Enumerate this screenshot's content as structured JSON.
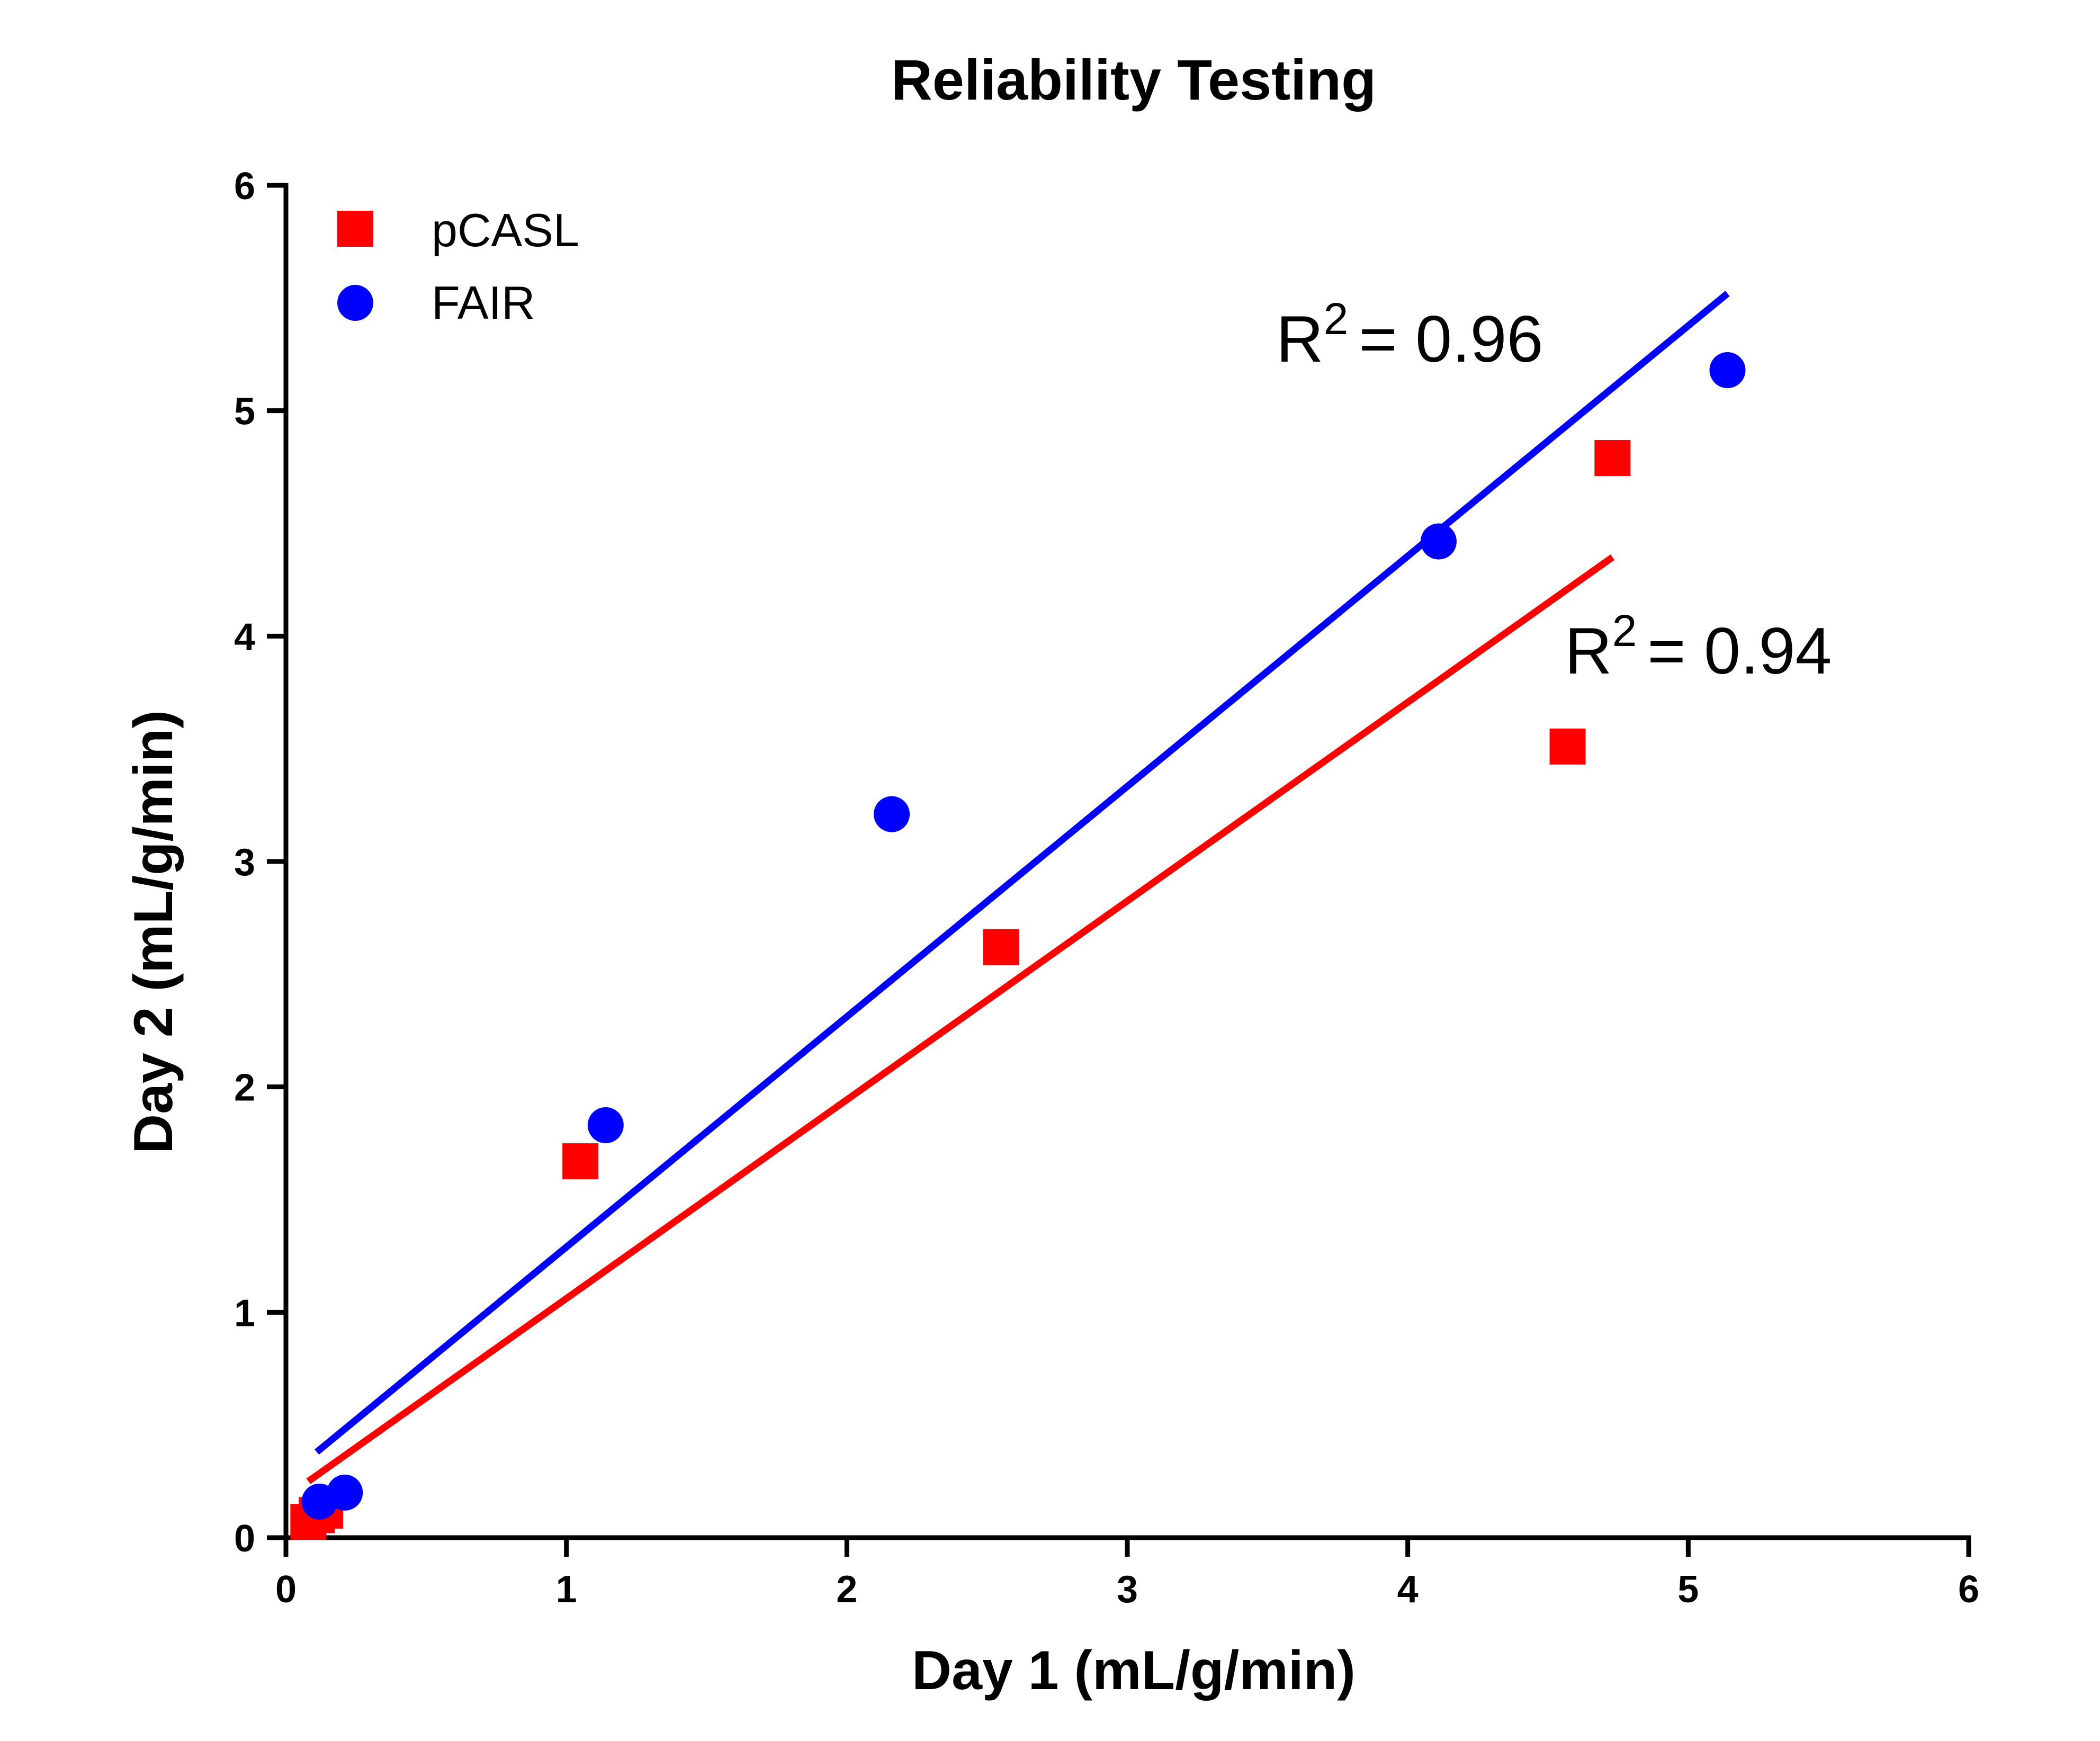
{
  "chart_data": {
    "type": "scatter",
    "title": "Reliability Testing",
    "xlabel": "Day 1 (mL/g/min)",
    "ylabel": "Day 2 (mL/g/min)",
    "xlim": [
      0,
      6
    ],
    "ylim": [
      0,
      6
    ],
    "xticks": [
      0,
      1,
      2,
      3,
      4,
      5,
      6
    ],
    "yticks": [
      0,
      1,
      2,
      3,
      4,
      5,
      6
    ],
    "grid": false,
    "legend_position": "top-left",
    "series": [
      {
        "name": "pCASL",
        "marker": "square",
        "color": "#ff0000",
        "points": [
          [
            0.08,
            0.07
          ],
          [
            0.11,
            0.1
          ],
          [
            0.14,
            0.12
          ],
          [
            1.05,
            1.67
          ],
          [
            2.55,
            2.62
          ],
          [
            4.57,
            3.51
          ],
          [
            4.73,
            4.79
          ]
        ],
        "fit_line": [
          [
            0.08,
            0.25
          ],
          [
            4.73,
            4.35
          ]
        ],
        "r2_prefix": "R",
        "r2_exp": "2",
        "r2_text": "=  0.94"
      },
      {
        "name": "FAIR",
        "marker": "circle",
        "color": "#0000ff",
        "points": [
          [
            0.12,
            0.16
          ],
          [
            0.21,
            0.2
          ],
          [
            1.14,
            1.83
          ],
          [
            2.16,
            3.21
          ],
          [
            4.11,
            4.42
          ],
          [
            5.14,
            5.18
          ]
        ],
        "fit_line": [
          [
            0.11,
            0.38
          ],
          [
            5.14,
            5.52
          ]
        ],
        "r2_prefix": "R",
        "r2_exp": "2",
        "r2_text": "=  0.96"
      }
    ]
  }
}
